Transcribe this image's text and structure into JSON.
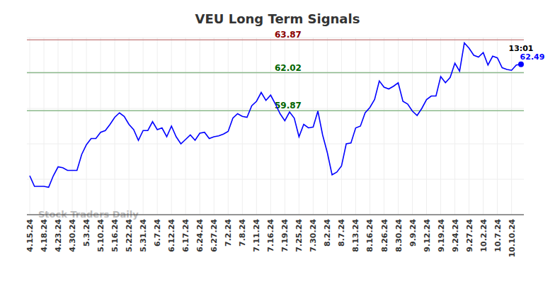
{
  "chart_data": {
    "type": "line",
    "title": "VEU Long Term Signals",
    "watermark": "Stock Traders Daily",
    "time_label": "13:01",
    "categories": [
      "4.15.24",
      null,
      null,
      "4.18.24",
      null,
      null,
      "4.23.24",
      null,
      null,
      "4.30.24",
      null,
      null,
      "5.3.24",
      null,
      null,
      "5.10.24",
      null,
      null,
      "5.16.24",
      null,
      null,
      "5.22.24",
      null,
      null,
      "5.31.24",
      null,
      null,
      "6.7.24",
      null,
      null,
      "6.12.24",
      null,
      null,
      "6.17.24",
      null,
      null,
      "6.24.24",
      null,
      null,
      "6.27.24",
      null,
      null,
      "7.2.24",
      null,
      null,
      "7.8.24",
      null,
      null,
      "7.11.24",
      null,
      null,
      "7.16.24",
      null,
      null,
      "7.19.24",
      null,
      null,
      "7.25.24",
      null,
      null,
      "7.30.24",
      null,
      null,
      "8.2.24",
      null,
      null,
      "8.7.24",
      null,
      null,
      "8.13.24",
      null,
      null,
      "8.16.24",
      null,
      null,
      "8.26.24",
      null,
      null,
      "8.30.24",
      null,
      null,
      "9.9.24",
      null,
      null,
      "9.12.24",
      null,
      null,
      "9.19.24",
      null,
      null,
      "9.24.24",
      null,
      null,
      "9.27.24",
      null,
      null,
      "10.2.24",
      null,
      null,
      "10.7.24",
      null,
      null,
      "10.10.24",
      null,
      null
    ],
    "values": [
      56.2,
      55.6,
      55.6,
      55.6,
      55.55,
      56.2,
      56.7,
      56.65,
      56.5,
      56.5,
      56.5,
      57.4,
      57.95,
      58.3,
      58.3,
      58.65,
      58.75,
      59.1,
      59.5,
      59.75,
      59.55,
      59.1,
      58.8,
      58.2,
      58.75,
      58.75,
      59.25,
      58.8,
      58.9,
      58.4,
      59.0,
      58.4,
      58.0,
      58.25,
      58.5,
      58.2,
      58.6,
      58.65,
      58.3,
      58.4,
      58.45,
      58.55,
      58.7,
      59.45,
      59.7,
      59.55,
      59.5,
      60.15,
      60.4,
      60.9,
      60.45,
      60.75,
      60.25,
      59.7,
      59.3,
      59.8,
      59.45,
      58.4,
      59.1,
      58.9,
      58.95,
      59.85,
      58.5,
      57.5,
      56.25,
      56.4,
      56.75,
      58.0,
      58.05,
      58.9,
      59.0,
      59.75,
      60.05,
      60.5,
      61.55,
      61.2,
      61.1,
      61.25,
      61.45,
      60.4,
      60.25,
      59.85,
      59.6,
      60.0,
      60.5,
      60.7,
      60.7,
      61.8,
      61.45,
      61.75,
      62.55,
      62.1,
      63.7,
      63.4,
      63.0,
      62.9,
      63.15,
      62.45,
      62.95,
      62.85,
      62.3,
      62.2,
      62.15,
      62.45,
      62.49
    ],
    "color": "#0000ff",
    "ylim": [
      54,
      64
    ],
    "yticks": [
      54,
      56,
      58,
      60,
      62,
      64
    ],
    "grid": true,
    "tick_labels": "x",
    "reference_lines": [
      {
        "value": 63.87,
        "label": "63.87",
        "color": "#8b0000"
      },
      {
        "value": 62.02,
        "label": "62.02",
        "color": "#006400"
      },
      {
        "value": 59.87,
        "label": "59.87",
        "color": "#006400"
      }
    ]
  }
}
